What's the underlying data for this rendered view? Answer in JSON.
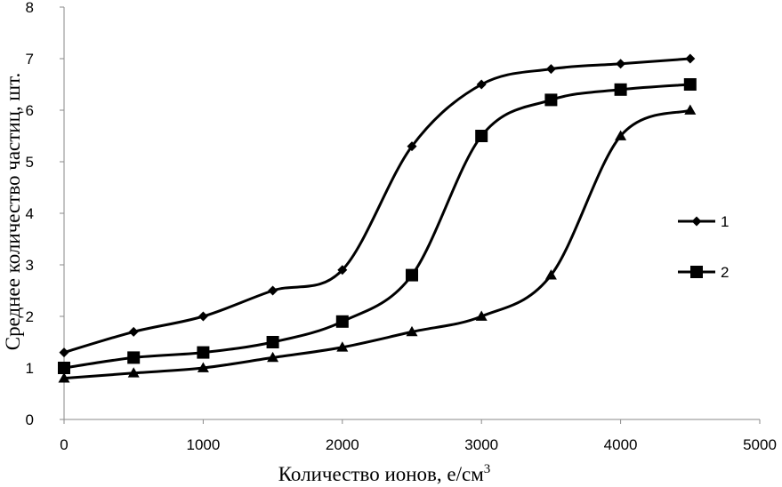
{
  "chart_data": {
    "type": "line",
    "xlabel": "Количество ионов, e/см",
    "xlabel_sup": "3",
    "ylabel": "Среднее количество частиц, шт.",
    "xlim": [
      0,
      5000
    ],
    "ylim": [
      0,
      8
    ],
    "x_ticks": [
      "0",
      "1000",
      "2000",
      "3000",
      "4000",
      "5000"
    ],
    "y_ticks": [
      "0",
      "1",
      "2",
      "3",
      "4",
      "5",
      "6",
      "7",
      "8"
    ],
    "grid": false,
    "legend_position": "right",
    "x": [
      0,
      500,
      1000,
      1500,
      2000,
      2500,
      3000,
      3500,
      4000,
      4500
    ],
    "series": [
      {
        "name": "1",
        "marker": "diamond",
        "values": [
          1.3,
          1.7,
          2.0,
          2.5,
          2.9,
          5.3,
          6.5,
          6.8,
          6.9,
          7.0
        ]
      },
      {
        "name": "2",
        "marker": "square",
        "values": [
          1.0,
          1.2,
          1.3,
          1.5,
          1.9,
          2.8,
          5.5,
          6.2,
          6.4,
          6.5
        ]
      },
      {
        "marker": "triangle",
        "values": [
          0.8,
          0.9,
          1.0,
          1.2,
          1.4,
          1.7,
          2.0,
          2.8,
          5.5,
          6.0
        ]
      }
    ],
    "line_color": "#000000"
  }
}
